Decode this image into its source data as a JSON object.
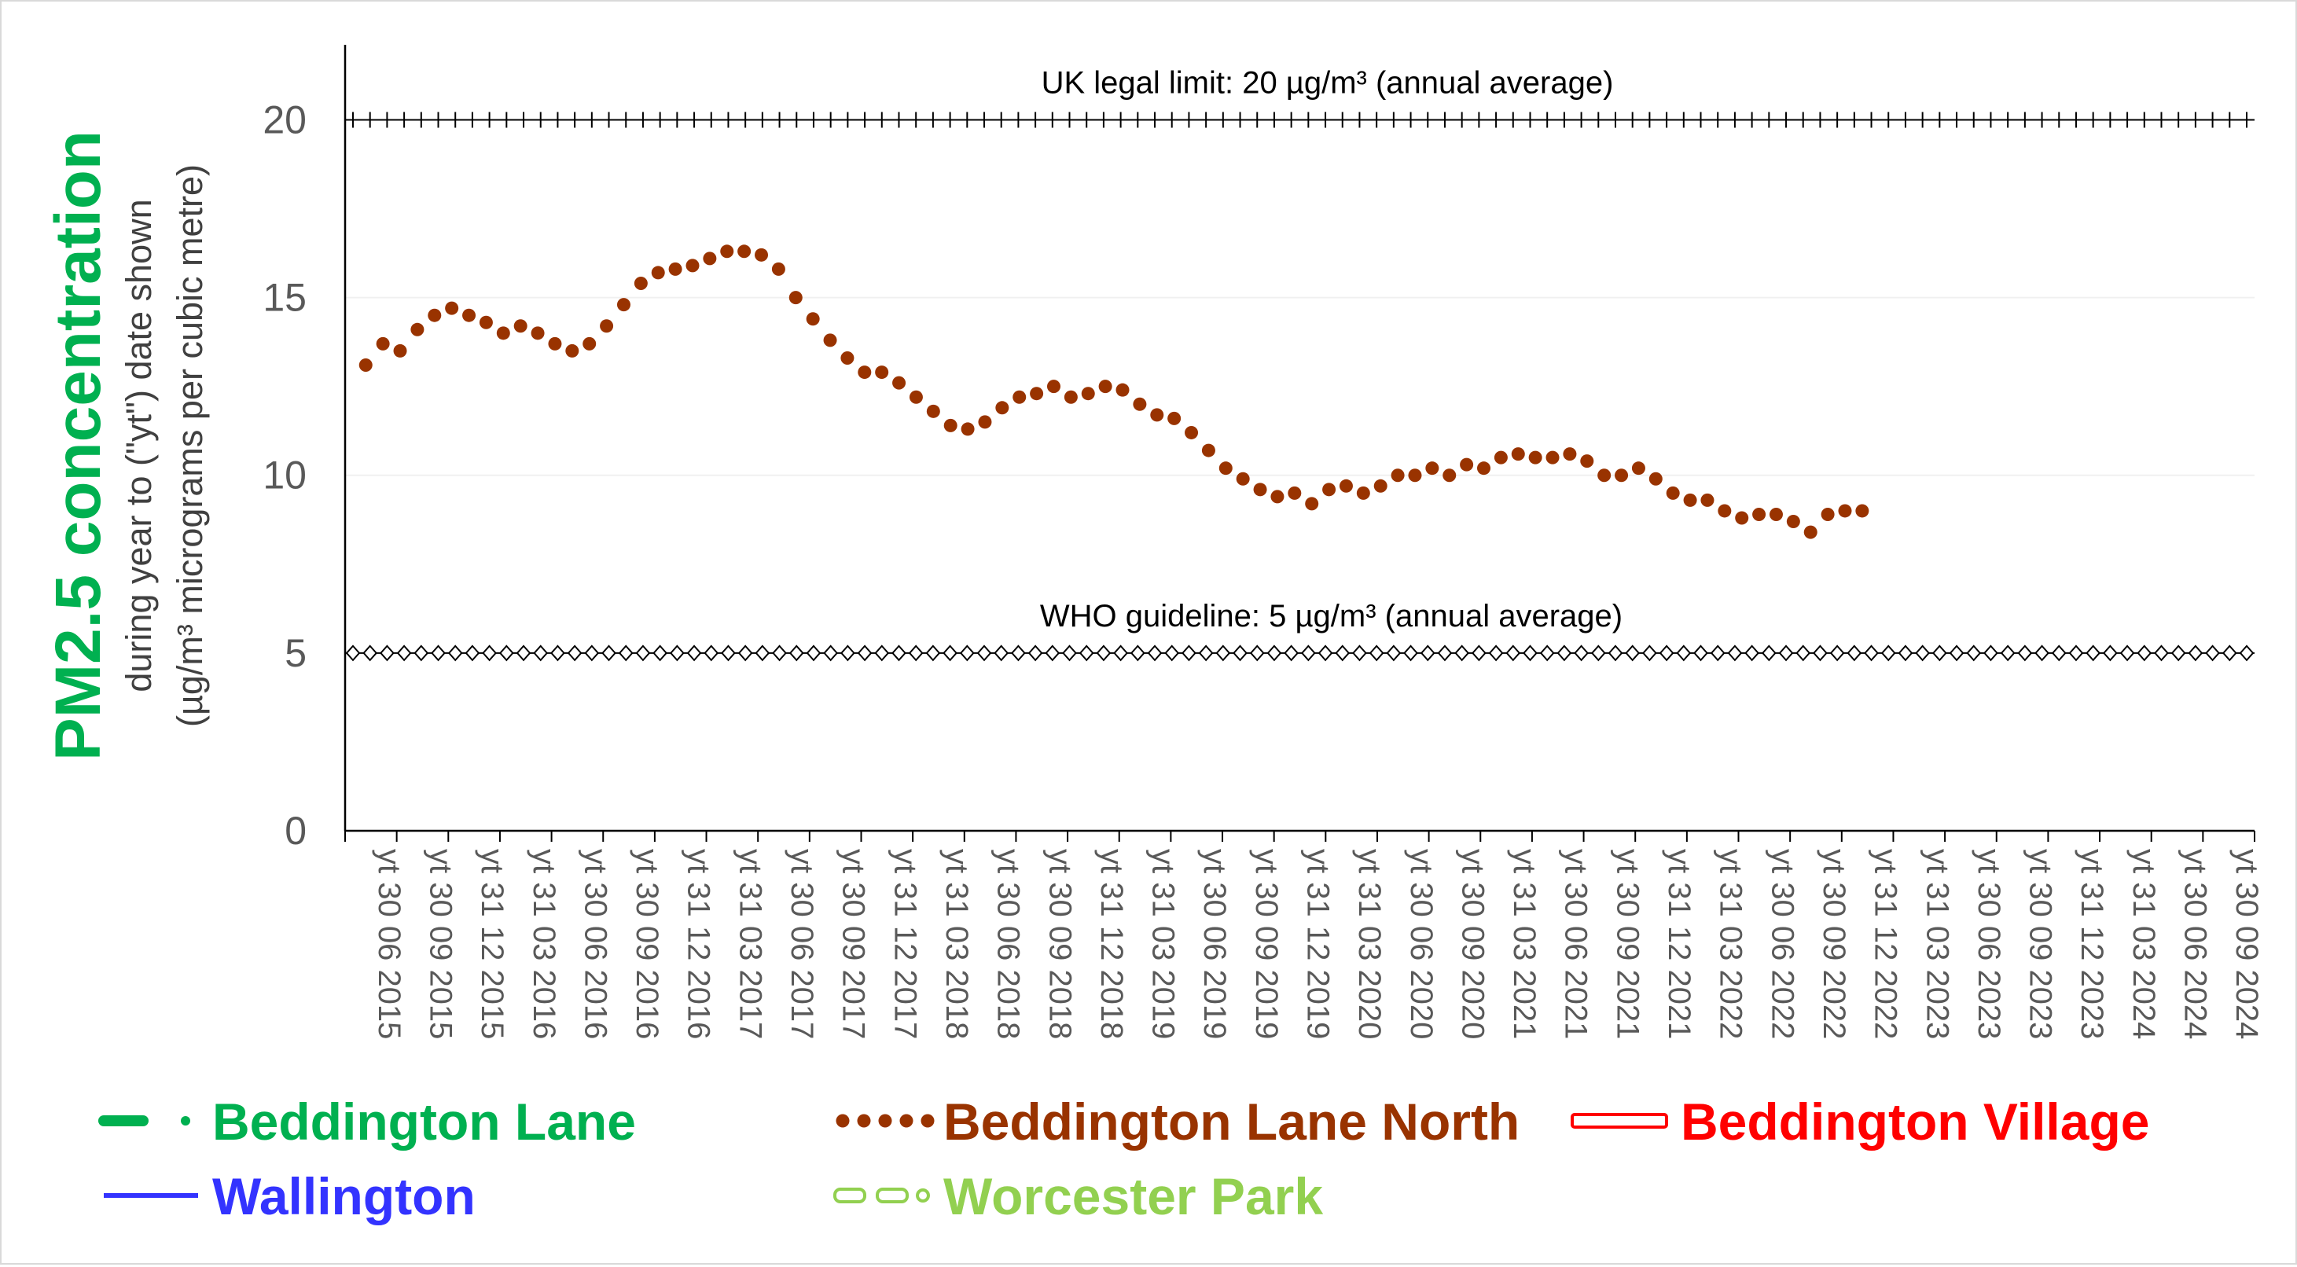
{
  "chart_data": {
    "type": "line",
    "title": "",
    "ylabel_main": "PM2.5 concentration",
    "ylabel_line1": "during year to (\"yt\") date shown",
    "ylabel_line2": "(µg/m³ micrograms per cubic metre)",
    "ylim": [
      0,
      22
    ],
    "yticks": [
      "0",
      "5",
      "10",
      "15",
      "20"
    ],
    "grid": true,
    "xtick_labels": [
      "yt 30 06 2015",
      "yt 30 09 2015",
      "yt 31 12 2015",
      "yt 31 03 2016",
      "yt 30 06 2016",
      "yt 30 09 2016",
      "yt 31 12 2016",
      "yt 31 03 2017",
      "yt 30 06 2017",
      "yt 30 09 2017",
      "yt 31 12 2017",
      "yt 31 03 2018",
      "yt 30 06 2018",
      "yt 30 09 2018",
      "yt 31 12 2018",
      "yt 31 03 2019",
      "yt 30 06 2019",
      "yt 30 09 2019",
      "yt 31 12 2019",
      "yt 31 03 2020",
      "yt 30 06 2020",
      "yt 30 09 2020",
      "yt 31 03 2021",
      "yt 30 06 2021",
      "yt 30 09 2021",
      "yt 31 12 2021",
      "yt 31 03 2022",
      "yt 30 06 2022",
      "yt 30 09 2022",
      "yt 31 12 2022",
      "yt 31 03 2023",
      "yt 30 06 2023",
      "yt 30 09 2023",
      "yt 31 12 2023",
      "yt 31 03 2024",
      "yt 30 06 2024",
      "yt 30 09 2024"
    ],
    "reference_lines": [
      {
        "value": 20,
        "label": "UK legal limit:  20 µg/m³ (annual average)",
        "marker": "plus",
        "color": "#000000"
      },
      {
        "value": 5,
        "label": "WHO guideline:  5 µg/m³ (annual average)",
        "marker": "diamond",
        "color": "#000000"
      }
    ],
    "series": [
      {
        "name": "Beddington Lane North",
        "color": "#993300",
        "style": "dotted",
        "start_index": 0.4,
        "step": 0.3333,
        "values": [
          13.1,
          13.7,
          13.5,
          14.1,
          14.5,
          14.7,
          14.5,
          14.3,
          14.0,
          14.2,
          14.0,
          13.7,
          13.5,
          13.7,
          14.2,
          14.8,
          15.4,
          15.7,
          15.8,
          15.9,
          16.1,
          16.3,
          16.3,
          16.2,
          15.8,
          15.0,
          14.4,
          13.8,
          13.3,
          12.9,
          12.9,
          12.6,
          12.2,
          11.8,
          11.4,
          11.3,
          11.5,
          11.9,
          12.2,
          12.3,
          12.5,
          12.2,
          12.3,
          12.5,
          12.4,
          12.0,
          11.7,
          11.6,
          11.2,
          10.7,
          10.2,
          9.9,
          9.6,
          9.4,
          9.5,
          9.2,
          9.6,
          9.7,
          9.5,
          9.7,
          10.0,
          10.0,
          10.2,
          10.0,
          10.3,
          10.2,
          10.5,
          10.6,
          10.5,
          10.5,
          10.6,
          10.4,
          10.0,
          10.0,
          10.2,
          9.9,
          9.5,
          9.3,
          9.3,
          9.0,
          8.8,
          8.9,
          8.9,
          8.7,
          8.4,
          8.9,
          9.0,
          9.0
        ]
      }
    ],
    "legend_position": "bottom",
    "legend": [
      {
        "name": "Beddington Lane",
        "color": "#00b050",
        "style": "dash-dot"
      },
      {
        "name": "Beddington Lane North",
        "color": "#993300",
        "style": "dotted"
      },
      {
        "name": "Beddington Village",
        "color": "#ff0000",
        "style": "double"
      },
      {
        "name": "Wallington",
        "color": "#3333ff",
        "style": "solid"
      },
      {
        "name": "Worcester Park",
        "color": "#92d050",
        "style": "hollow-dash"
      }
    ]
  }
}
